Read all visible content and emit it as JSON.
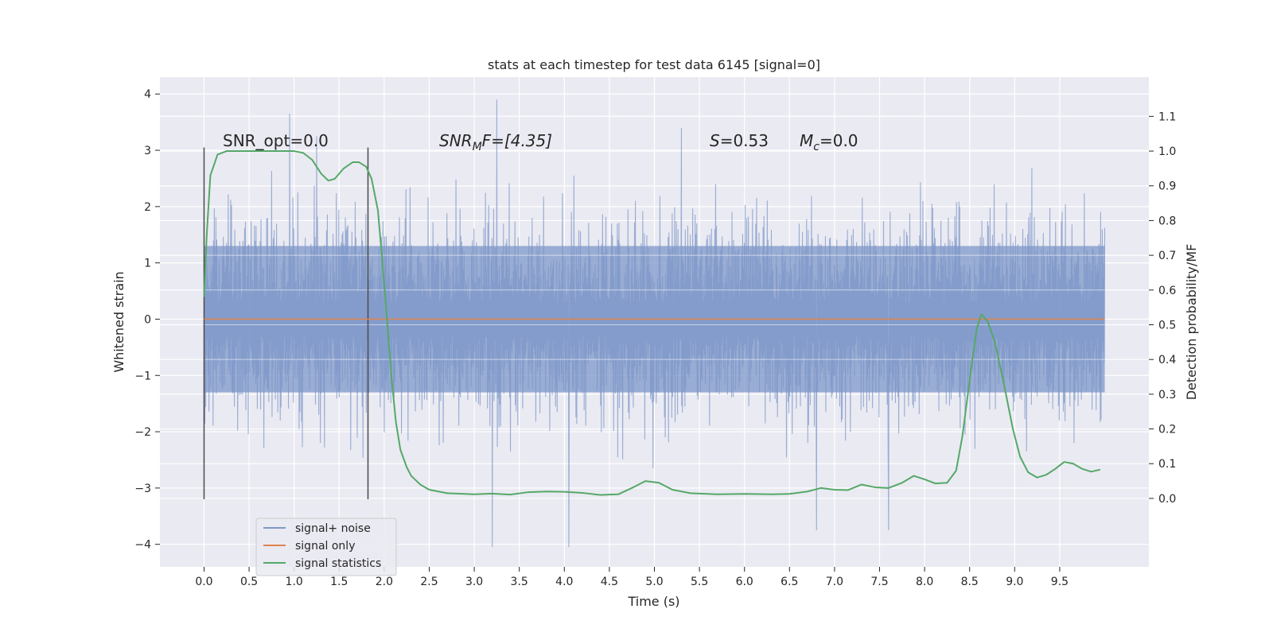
{
  "chart_data": {
    "type": "line",
    "title": "stats at each timestep for test data 6145 [signal=0]",
    "xlabel": "Time (s)",
    "ylabel": "Whitened strain",
    "ylabel_right": "Detection probability/MF",
    "xlim": [
      -0.49,
      10.49
    ],
    "ylim": [
      -4.4,
      4.3
    ],
    "ylim_right": [
      -0.197,
      1.213
    ],
    "x_ticks": [
      0.0,
      0.5,
      1.0,
      1.5,
      2.0,
      2.5,
      3.0,
      3.5,
      4.0,
      4.5,
      5.0,
      5.5,
      6.0,
      6.5,
      7.0,
      7.5,
      8.0,
      8.5,
      9.0,
      9.5
    ],
    "x_tick_labels": [
      "0.0",
      "0.5",
      "1.0",
      "1.5",
      "2.0",
      "2.5",
      "3.0",
      "3.5",
      "4.0",
      "4.5",
      "5.0",
      "5.5",
      "6.0",
      "6.5",
      "7.0",
      "7.5",
      "8.0",
      "8.5",
      "9.0",
      "9.5"
    ],
    "y_ticks": [
      4,
      3,
      2,
      1,
      0,
      -1,
      -2,
      -3,
      -4
    ],
    "y_tick_labels": [
      "4",
      "3",
      "2",
      "1",
      "0",
      "−1",
      "−2",
      "−3",
      "−4"
    ],
    "y2_ticks": [
      1.1,
      1.0,
      0.9,
      0.8,
      0.7,
      0.6,
      0.5,
      0.4,
      0.3,
      0.2,
      0.1,
      0.0
    ],
    "y2_tick_labels": [
      "1.1",
      "1.0",
      "0.9",
      "0.8",
      "0.7",
      "0.6",
      "0.5",
      "0.4",
      "0.3",
      "0.2",
      "0.1",
      "0.0"
    ],
    "grid": true,
    "annotations": {
      "snr_opt": "SNR_opt=0.0",
      "snr_mf_main": "SNR",
      "snr_mf_sub": "M",
      "snr_mf_rest": "F=[4.35]",
      "s_var": "S",
      "s_rest": "=0.53",
      "mc_var": "M",
      "mc_sub": "c",
      "mc_rest": "=0.0"
    },
    "vlines": [
      0.0,
      1.82
    ],
    "vline_range": [
      -3.2,
      3.05
    ],
    "noise": {
      "t_start": 0.0,
      "t_end": 10.0,
      "band_top": 1.3,
      "band_bottom": -1.3,
      "peak_max": 3.9,
      "peak_min": -4.05
    },
    "series": [
      {
        "name": "signal+ noise",
        "color": "#7e97c8"
      },
      {
        "name": "signal only",
        "color": "#dd8452",
        "values": [
          [
            0.0,
            0.0
          ],
          [
            10.0,
            0.0
          ]
        ]
      },
      {
        "name": "signal statistics",
        "color": "#55a868",
        "axis": "right",
        "points": [
          [
            0.0,
            0.58
          ],
          [
            0.03,
            0.76
          ],
          [
            0.07,
            0.93
          ],
          [
            0.15,
            0.99
          ],
          [
            0.25,
            1.0
          ],
          [
            0.5,
            1.0
          ],
          [
            0.75,
            1.0
          ],
          [
            1.0,
            1.0
          ],
          [
            1.1,
            0.995
          ],
          [
            1.2,
            0.975
          ],
          [
            1.3,
            0.935
          ],
          [
            1.38,
            0.915
          ],
          [
            1.45,
            0.92
          ],
          [
            1.55,
            0.95
          ],
          [
            1.65,
            0.968
          ],
          [
            1.72,
            0.968
          ],
          [
            1.8,
            0.955
          ],
          [
            1.86,
            0.92
          ],
          [
            1.93,
            0.83
          ],
          [
            1.98,
            0.68
          ],
          [
            2.03,
            0.52
          ],
          [
            2.08,
            0.35
          ],
          [
            2.13,
            0.22
          ],
          [
            2.18,
            0.14
          ],
          [
            2.25,
            0.09
          ],
          [
            2.3,
            0.065
          ],
          [
            2.4,
            0.04
          ],
          [
            2.5,
            0.025
          ],
          [
            2.7,
            0.015
          ],
          [
            3.0,
            0.012
          ],
          [
            3.2,
            0.014
          ],
          [
            3.4,
            0.011
          ],
          [
            3.6,
            0.018
          ],
          [
            3.8,
            0.02
          ],
          [
            4.0,
            0.019
          ],
          [
            4.2,
            0.016
          ],
          [
            4.4,
            0.01
          ],
          [
            4.6,
            0.012
          ],
          [
            4.75,
            0.03
          ],
          [
            4.9,
            0.05
          ],
          [
            5.05,
            0.045
          ],
          [
            5.2,
            0.025
          ],
          [
            5.4,
            0.015
          ],
          [
            5.7,
            0.012
          ],
          [
            6.0,
            0.013
          ],
          [
            6.3,
            0.012
          ],
          [
            6.5,
            0.013
          ],
          [
            6.7,
            0.02
          ],
          [
            6.85,
            0.03
          ],
          [
            7.0,
            0.025
          ],
          [
            7.15,
            0.024
          ],
          [
            7.3,
            0.04
          ],
          [
            7.45,
            0.032
          ],
          [
            7.6,
            0.03
          ],
          [
            7.75,
            0.045
          ],
          [
            7.88,
            0.065
          ],
          [
            8.0,
            0.055
          ],
          [
            8.12,
            0.043
          ],
          [
            8.25,
            0.045
          ],
          [
            8.35,
            0.08
          ],
          [
            8.42,
            0.18
          ],
          [
            8.48,
            0.3
          ],
          [
            8.53,
            0.4
          ],
          [
            8.58,
            0.49
          ],
          [
            8.63,
            0.53
          ],
          [
            8.7,
            0.51
          ],
          [
            8.78,
            0.45
          ],
          [
            8.88,
            0.33
          ],
          [
            8.98,
            0.2
          ],
          [
            9.06,
            0.12
          ],
          [
            9.15,
            0.075
          ],
          [
            9.25,
            0.06
          ],
          [
            9.35,
            0.068
          ],
          [
            9.45,
            0.085
          ],
          [
            9.55,
            0.105
          ],
          [
            9.65,
            0.1
          ],
          [
            9.75,
            0.085
          ],
          [
            9.85,
            0.077
          ],
          [
            9.95,
            0.083
          ]
        ]
      }
    ],
    "legend": {
      "position": "lower-left",
      "entries": [
        "signal+ noise",
        "signal only",
        "signal statistics"
      ]
    },
    "colors": {
      "plot_bg": "#eaeaf2",
      "grid": "#ffffff",
      "noise": "#7e97c8",
      "signal_only": "#dd8452",
      "statistics": "#55a868",
      "vline": "#4a4a4a"
    }
  }
}
